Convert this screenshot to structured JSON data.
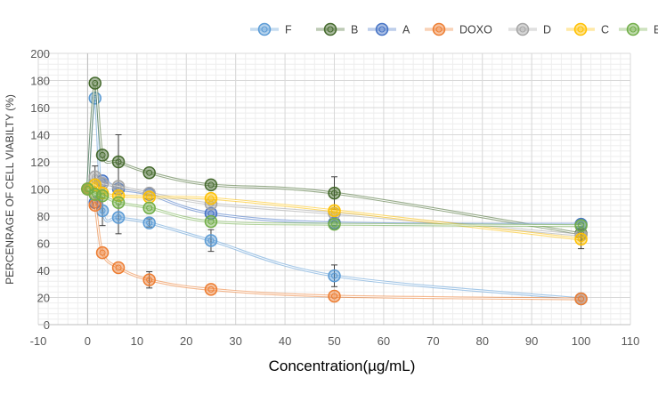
{
  "chart_data": {
    "type": "line",
    "title": "",
    "xlabel": "Concentration(µg/mL)",
    "ylabel": "PERCENRAGE OF CELL VIABILTY (%)",
    "xlim": [
      -10,
      110
    ],
    "ylim": [
      0,
      200
    ],
    "x_ticks": [
      -10,
      0,
      10,
      20,
      30,
      40,
      50,
      60,
      70,
      80,
      90,
      100,
      110
    ],
    "y_ticks": [
      0,
      20,
      40,
      60,
      80,
      100,
      120,
      140,
      160,
      180,
      200
    ],
    "grid": true,
    "legend_position": "top-right",
    "series": [
      {
        "name": "F",
        "color": "#5b9bd5",
        "x": [
          0,
          1.5,
          3,
          6.25,
          12.5,
          25,
          50,
          100
        ],
        "y": [
          100,
          167,
          84,
          79,
          75,
          62,
          36,
          19
        ],
        "err": [
          0,
          0,
          11,
          12,
          3,
          8,
          8,
          0
        ]
      },
      {
        "name": "B",
        "color": "#43682b",
        "x": [
          0,
          1.5,
          3,
          6.25,
          12.5,
          25,
          50,
          100
        ],
        "y": [
          100,
          178,
          125,
          120,
          112,
          103,
          97,
          67
        ],
        "err": [
          0,
          0,
          0,
          20,
          0,
          0,
          12,
          0
        ]
      },
      {
        "name": "A",
        "color": "#4472c4",
        "x": [
          0,
          1.5,
          3,
          6.25,
          12.5,
          25,
          50,
          100
        ],
        "y": [
          100,
          90,
          106,
          100,
          96,
          82,
          75,
          74
        ],
        "err": [
          0,
          0,
          0,
          0,
          0,
          0,
          0,
          0
        ]
      },
      {
        "name": "DOXO",
        "color": "#ed7d31",
        "x": [
          0,
          1.5,
          3,
          6.25,
          12.5,
          25,
          50,
          100
        ],
        "y": [
          100,
          88,
          53,
          42,
          33,
          26,
          21,
          19
        ],
        "err": [
          0,
          0,
          0,
          0,
          6,
          0,
          0,
          0
        ]
      },
      {
        "name": "D",
        "color": "#a5a5a5",
        "x": [
          0,
          1.5,
          3,
          6.25,
          12.5,
          25,
          50,
          100
        ],
        "y": [
          100,
          109,
          104,
          102,
          97,
          89,
          82,
          66
        ],
        "err": [
          0,
          8,
          0,
          0,
          0,
          0,
          0,
          0
        ]
      },
      {
        "name": "C",
        "color": "#ffc000",
        "x": [
          0,
          1.5,
          3,
          6.25,
          12.5,
          25,
          50,
          100
        ],
        "y": [
          100,
          103,
          97,
          95,
          94,
          93,
          84,
          63
        ],
        "err": [
          0,
          0,
          0,
          0,
          0,
          0,
          0,
          7
        ]
      },
      {
        "name": "E",
        "color": "#70ad47",
        "x": [
          0,
          1.5,
          3,
          6.25,
          12.5,
          25,
          50,
          100
        ],
        "y": [
          100,
          96,
          95,
          90,
          86,
          76,
          74,
          73
        ],
        "err": [
          0,
          0,
          0,
          0,
          0,
          0,
          0,
          0
        ]
      }
    ]
  }
}
